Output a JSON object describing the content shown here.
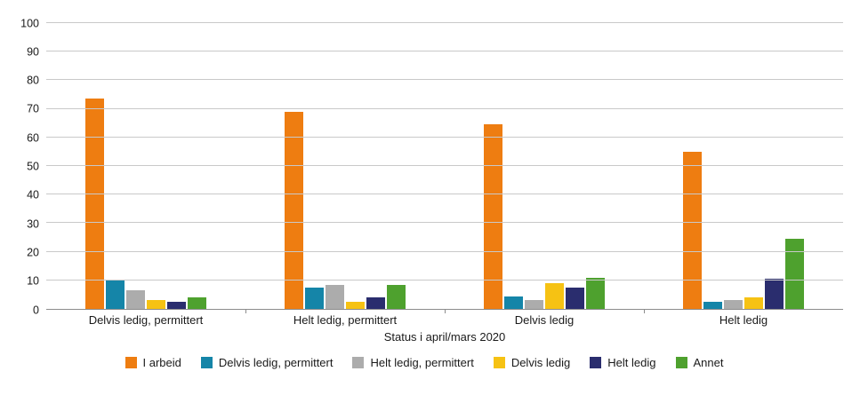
{
  "chart_data": {
    "type": "bar",
    "title": "",
    "xlabel": "Status i april/mars 2020",
    "ylabel": "",
    "ylim": [
      0,
      100
    ],
    "ytick_step": 10,
    "grid": true,
    "legend_position": "bottom",
    "categories": [
      "Delvis ledig, permittert",
      "Helt ledig, permittert",
      "Delvis ledig",
      "Helt ledig"
    ],
    "series": [
      {
        "name": "I arbeid",
        "color": "#EE7D11",
        "values": [
          73.5,
          69.0,
          64.5,
          55.0
        ]
      },
      {
        "name": "Delvis ledig, permittert",
        "color": "#1585A8",
        "values": [
          10.0,
          7.5,
          4.5,
          2.5
        ]
      },
      {
        "name": "Helt ledig, permittert",
        "color": "#ACACAC",
        "values": [
          6.5,
          8.5,
          3.0,
          3.0
        ]
      },
      {
        "name": "Delvis ledig",
        "color": "#F6C213",
        "values": [
          3.0,
          2.5,
          9.0,
          4.0
        ]
      },
      {
        "name": "Helt ledig",
        "color": "#2A2D6E",
        "values": [
          2.5,
          4.0,
          7.5,
          10.5
        ]
      },
      {
        "name": "Annet",
        "color": "#4EA12E",
        "values": [
          4.0,
          8.5,
          11.0,
          24.5
        ]
      }
    ]
  }
}
